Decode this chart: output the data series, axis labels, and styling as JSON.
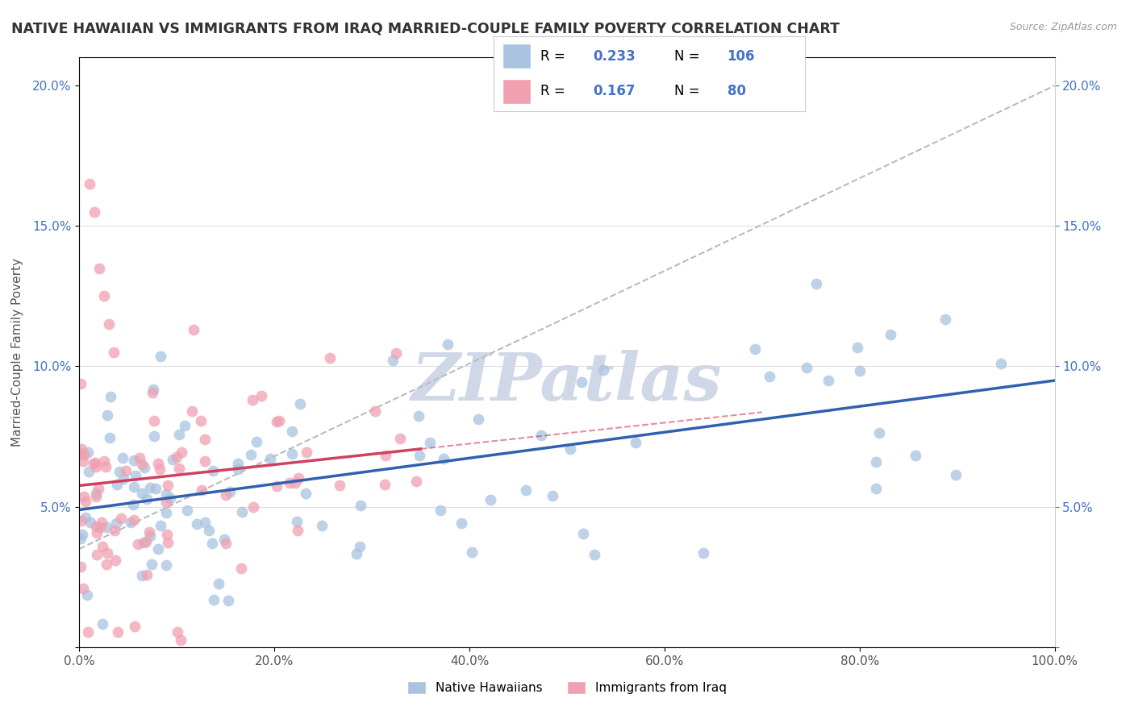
{
  "title": "NATIVE HAWAIIAN VS IMMIGRANTS FROM IRAQ MARRIED-COUPLE FAMILY POVERTY CORRELATION CHART",
  "source": "Source: ZipAtlas.com",
  "ylabel": "Married-Couple Family Poverty",
  "xlim": [
    0,
    1.0
  ],
  "ylim": [
    0,
    0.21
  ],
  "xticks": [
    0.0,
    0.2,
    0.4,
    0.6,
    0.8,
    1.0
  ],
  "xticklabels": [
    "0.0%",
    "20.0%",
    "40.0%",
    "60.0%",
    "80.0%",
    "100.0%"
  ],
  "yticks": [
    0.0,
    0.05,
    0.1,
    0.15,
    0.2
  ],
  "yticklabels_left": [
    "",
    "5.0%",
    "10.0%",
    "15.0%",
    "20.0%"
  ],
  "yticklabels_right": [
    "",
    "5.0%",
    "10.0%",
    "15.0%",
    "20.0%"
  ],
  "blue_color": "#a8c4e0",
  "pink_color": "#f0a0b0",
  "blue_line_color": "#3060b0",
  "pink_line_color": "#d04060",
  "gray_dash_color": "#bbbbbb",
  "watermark_color": "#d0d8e8",
  "R_blue": 0.233,
  "N_blue": 106,
  "R_pink": 0.167,
  "N_pink": 80,
  "tick_color_blue": "#4472c4",
  "legend_R_color": "#4472c4",
  "legend_N_color": "#4472c4",
  "background_color": "#ffffff"
}
